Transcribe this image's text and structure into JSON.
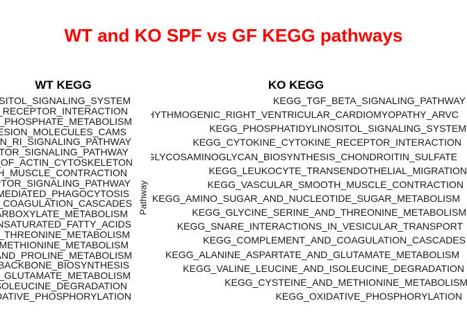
{
  "title": "WT and KO SPF vs GF KEGG pathways",
  "colors": {
    "title": "#ff0000",
    "text": "#1a1a1a",
    "background": "#ffffff"
  },
  "chart_data": [
    {
      "type": "bar",
      "title": "WT KEGG",
      "ylabel": "Pathway",
      "orientation": "horizontal",
      "categories": [
        "KEGG_PHOSPHATIDYLINOSITOL_SIGNALING_SYSTEM",
        "KEGG_CYTOKINE_CYTOKINE_RECEPTOR_INTERACTION",
        "KEGG_INOSITOL_PHOSPHATE_METABOLISM",
        "KEGG_CELL_ADHESION_MOLECULES_CAMS",
        "KEGG_FC_EPSILON_RI_SIGNALING_PATHWAY",
        "KEGG_TOLL_LIKE_RECEPTOR_SIGNALING_PATHWAY",
        "KEGG_REGULATION_OF_ACTIN_CYTOSKELETON",
        "KEGG_VASCULAR_SMOOTH_MUSCLE_CONTRACTION",
        "KEGG_B_CELL_RECEPTOR_SIGNALING_PATHWAY",
        "KEGG_FC_GAMMA_R_MEDIATED_PHAGOCYTOSIS",
        "KEGG_COMPLEMENT_AND_COAGULATION_CASCADES",
        "KEGG_GLYOXYLATE_AND_DICARBOXYLATE_METABOLISM",
        "KEGG_BIOSYNTHESIS_OF_UNSATURATED_FATTY_ACIDS",
        "KEGG_GLYCINE_SERINE_AND_THREONINE_METABOLISM",
        "KEGG_CYSTEINE_AND_METHIONINE_METABOLISM",
        "KEGG_ARGININE_AND_PROLINE_METABOLISM",
        "KEGG_TERPENOID_BACKBONE_BIOSYNTHESIS",
        "KEGG_ALANINE_ASPARTATE_AND_GLUTAMATE_METABOLISM",
        "KEGG_VALINE_LEUCINE_AND_ISOLEUCINE_DEGRADATION",
        "KEGG_OXIDATIVE_PHOSPHORYLATION"
      ]
    },
    {
      "type": "bar",
      "title": "KO KEGG",
      "orientation": "horizontal",
      "categories": [
        "KEGG_TGF_BETA_SIGNALING_PATHWAY",
        "KEGG_ARRHYTHMOGENIC_RIGHT_VENTRICULAR_CARDIOMYOPATHY_ARVC",
        "KEGG_PHOSPHATIDYLINOSITOL_SIGNALING_SYSTEM",
        "KEGG_CYTOKINE_CYTOKINE_RECEPTOR_INTERACTION",
        "KEGG_GLYCOSAMINOGLYCAN_BIOSYNTHESIS_CHONDROITIN_SULFATE",
        "KEGG_LEUKOCYTE_TRANSENDOTHELIAL_MIGRATION",
        "KEGG_VASCULAR_SMOOTH_MUSCLE_CONTRACTION",
        "KEGG_AMINO_SUGAR_AND_NUCLEOTIDE_SUGAR_METABOLISM",
        "KEGG_GLYCINE_SERINE_AND_THREONINE_METABOLISM",
        "KEGG_SNARE_INTERACTIONS_IN_VESICULAR_TRANSPORT",
        "KEGG_COMPLEMENT_AND_COAGULATION_CASCADES",
        "KEGG_ALANINE_ASPARTATE_AND_GLUTAMATE_METABOLISM",
        "KEGG_VALINE_LEUCINE_AND_ISOLEUCINE_DEGRADATION",
        "KEGG_CYSTEINE_AND_METHIONINE_METABOLISM",
        "KEGG_OXIDATIVE_PHOSPHORYLATION"
      ]
    }
  ]
}
